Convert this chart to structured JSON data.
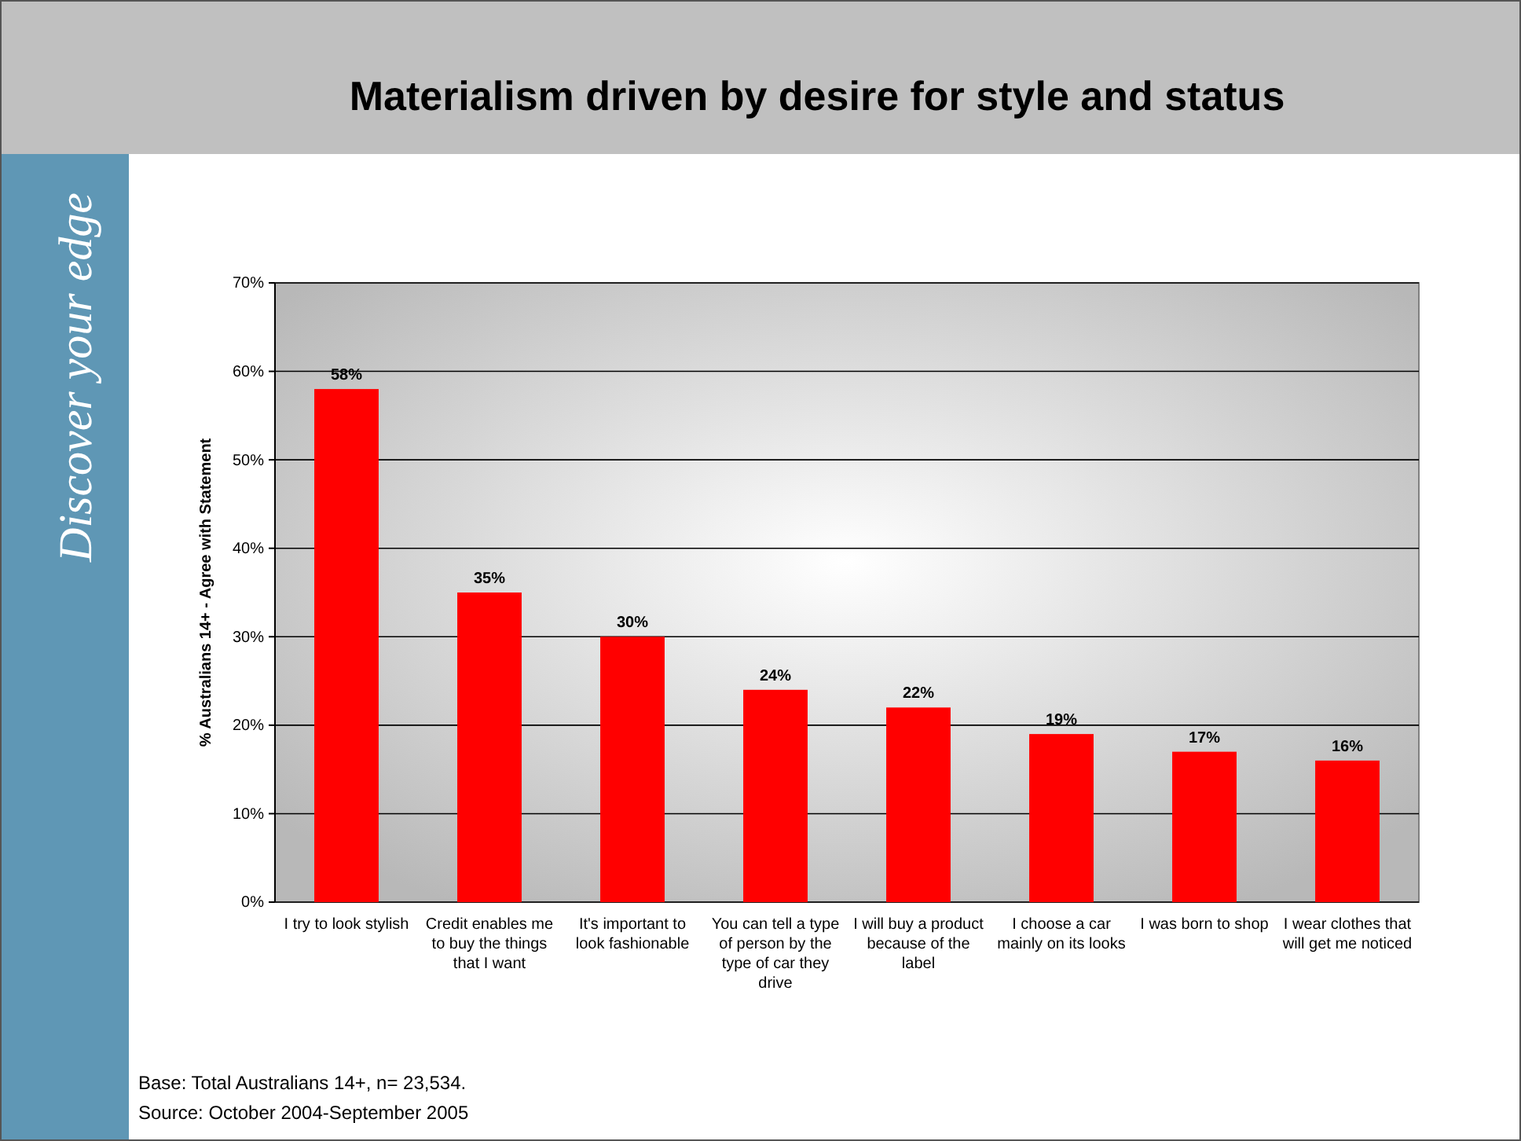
{
  "chart_data": {
    "type": "bar",
    "title": "Materialism driven by desire for style and status",
    "ylabel": "% Australians 14+ - Agree with Statement",
    "categories": [
      "I try to look stylish",
      "Credit enables me to buy the things that I want",
      "It's important to look fashionable",
      "You can tell a type of person by the type of car they drive",
      "I will buy a product because of the label",
      "I choose a car mainly on its looks",
      "I was born to shop",
      "I wear clothes that will get me noticed"
    ],
    "values": [
      58,
      35,
      30,
      24,
      22,
      19,
      17,
      16
    ],
    "color": "#ff0000",
    "value_labels": [
      "58%",
      "35%",
      "30%",
      "24%",
      "22%",
      "19%",
      "17%",
      "16%"
    ],
    "ylim": [
      0,
      70
    ],
    "yticks": [
      {
        "value": 0,
        "label": "0%"
      },
      {
        "value": 10,
        "label": "10%"
      },
      {
        "value": 20,
        "label": "20%"
      },
      {
        "value": 30,
        "label": "30%"
      },
      {
        "value": 40,
        "label": "40%"
      },
      {
        "value": 50,
        "label": "50%"
      },
      {
        "value": 60,
        "label": "60%"
      },
      {
        "value": 70,
        "label": "70%"
      }
    ],
    "grid": "y",
    "annotations": [
      "Discover your edge",
      "Base: Total Australians 14+, n= 23,534.",
      "Source: October 2004-September 2005"
    ]
  }
}
